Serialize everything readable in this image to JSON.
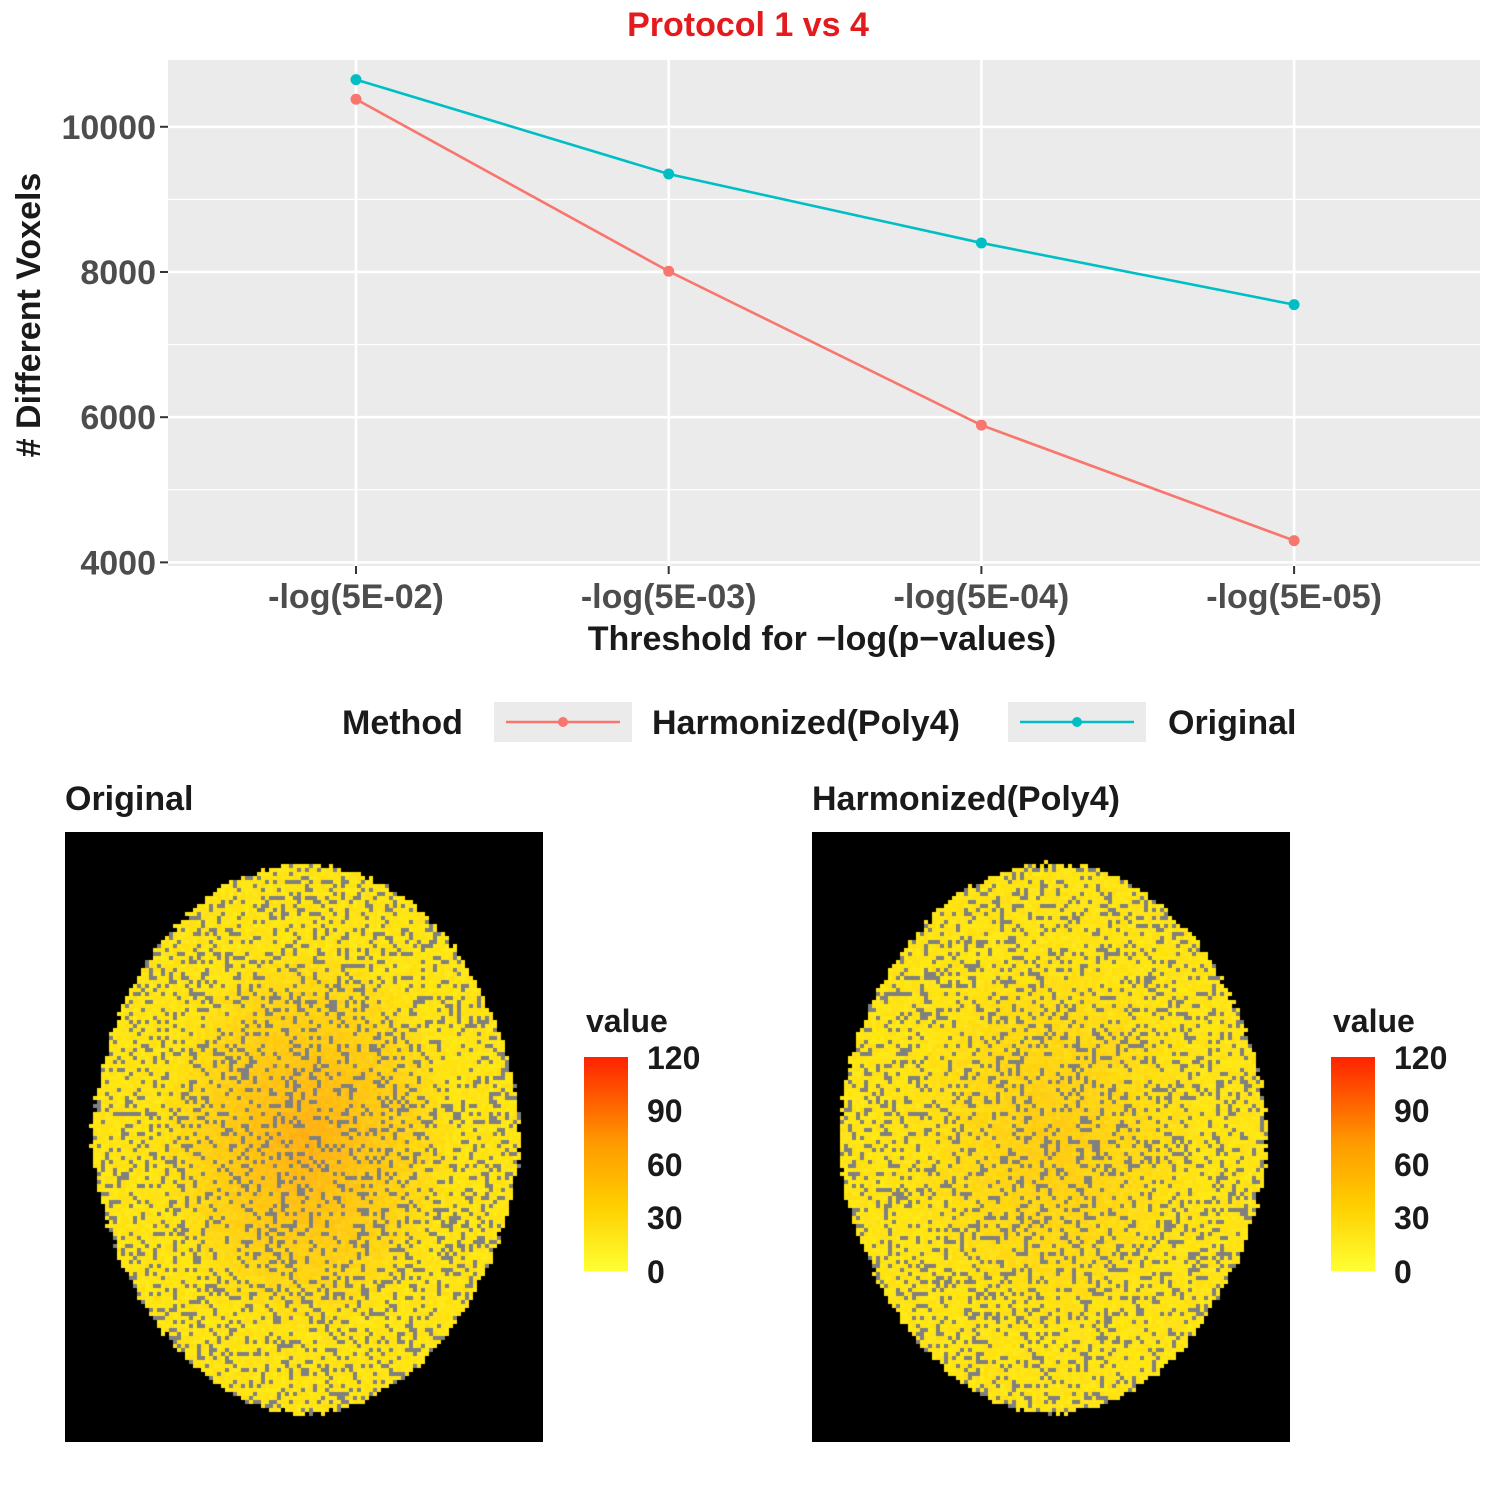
{
  "chart_data": [
    {
      "type": "line",
      "title": "Protocol 1 vs 4",
      "title_color": "#e41a1c",
      "xlabel": "Threshold for −log(p−values)",
      "ylabel": "# Different Voxels",
      "categories": [
        "-log(5E-02)",
        "-log(5E-03)",
        "-log(5E-04)",
        "-log(5E-05)"
      ],
      "ylim": [
        3950,
        10920
      ],
      "yticks": [
        4000,
        6000,
        8000,
        10000
      ],
      "series": [
        {
          "name": "Harmonized(Poly4)",
          "color": "#f8766d",
          "values": [
            10380,
            8010,
            5890,
            4300
          ]
        },
        {
          "name": "Original",
          "color": "#00bfc4",
          "values": [
            10650,
            9350,
            8400,
            7550
          ]
        }
      ],
      "legend": {
        "title": "Method",
        "position": "bottom"
      },
      "grid": true,
      "panel_bg": "#ebebeb"
    },
    {
      "type": "heatmap",
      "title": "Original",
      "colorbar": {
        "title": "value",
        "ticks": [
          "120",
          "90",
          "60",
          "30",
          "0"
        ],
        "range": [
          0,
          120
        ],
        "colors": [
          "#ffff33",
          "#ff2200"
        ]
      },
      "nodata_color": "#808080",
      "background": "#000000"
    },
    {
      "type": "heatmap",
      "title": "Harmonized(Poly4)",
      "colorbar": {
        "title": "value",
        "ticks": [
          "120",
          "90",
          "60",
          "30",
          "0"
        ],
        "range": [
          0,
          120
        ],
        "colors": [
          "#ffff33",
          "#ff2200"
        ]
      },
      "nodata_color": "#808080",
      "background": "#000000"
    }
  ]
}
